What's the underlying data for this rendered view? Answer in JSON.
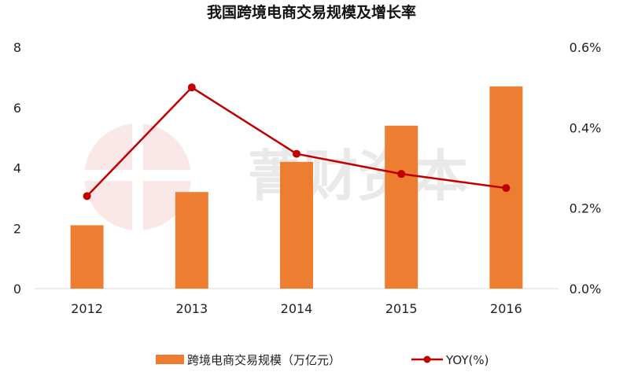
{
  "chart_data": {
    "type": "bar",
    "title": "我国跨境电商交易规模及增长率",
    "categories": [
      "2012",
      "2013",
      "2014",
      "2015",
      "2016"
    ],
    "series": [
      {
        "name": "跨境电商交易规模（万亿元）",
        "kind": "bar",
        "axis": "left",
        "color": "#ed7d31",
        "values": [
          2.1,
          3.2,
          4.2,
          5.4,
          6.7
        ]
      },
      {
        "name": "YOY(%)",
        "kind": "line",
        "axis": "right",
        "color": "#c00000",
        "values": [
          0.0023,
          0.005,
          0.00335,
          0.00285,
          0.0025
        ]
      }
    ],
    "left_axis": {
      "min": 0,
      "max": 8,
      "ticks": [
        "0",
        "2",
        "4",
        "6",
        "8"
      ]
    },
    "right_axis": {
      "min": 0,
      "max": 0.006,
      "ticks": [
        "0.0%",
        "0.2%",
        "0.4%",
        "0.6%"
      ]
    },
    "grid": false,
    "legend": "bottom-center"
  },
  "watermark": {
    "text": "菁财资本"
  }
}
